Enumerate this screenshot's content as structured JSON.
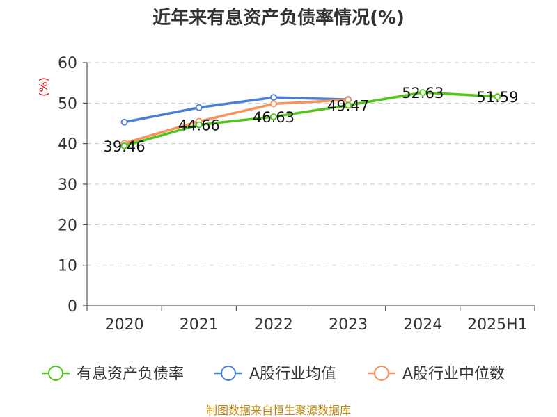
{
  "chart_data": {
    "type": "line",
    "title": "近年来有息资产负债率情况(%)",
    "ylabel": "(%)",
    "ylim": [
      0,
      60
    ],
    "yticks": [
      0,
      10,
      20,
      30,
      40,
      50,
      60
    ],
    "categories": [
      "2020",
      "2021",
      "2022",
      "2023",
      "2024",
      "2025H1"
    ],
    "grid": true,
    "legend_position": "bottom",
    "series": [
      {
        "name": "有息资产负债率",
        "color": "#52c41a",
        "values": [
          39.46,
          44.66,
          46.63,
          49.47,
          52.63,
          51.59
        ],
        "labels": [
          "39.46",
          "44.66",
          "46.63",
          "49.47",
          "52.63",
          "51.59"
        ]
      },
      {
        "name": "A股行业均值",
        "color": "#4a7fd6",
        "values": [
          45.3,
          48.9,
          51.4,
          50.9,
          null,
          null
        ]
      },
      {
        "name": "A股行业中位数",
        "color": "#f5925e",
        "values": [
          40.1,
          45.5,
          49.8,
          50.8,
          null,
          null
        ]
      }
    ],
    "source": "制图数据来自恒生聚源数据库"
  }
}
